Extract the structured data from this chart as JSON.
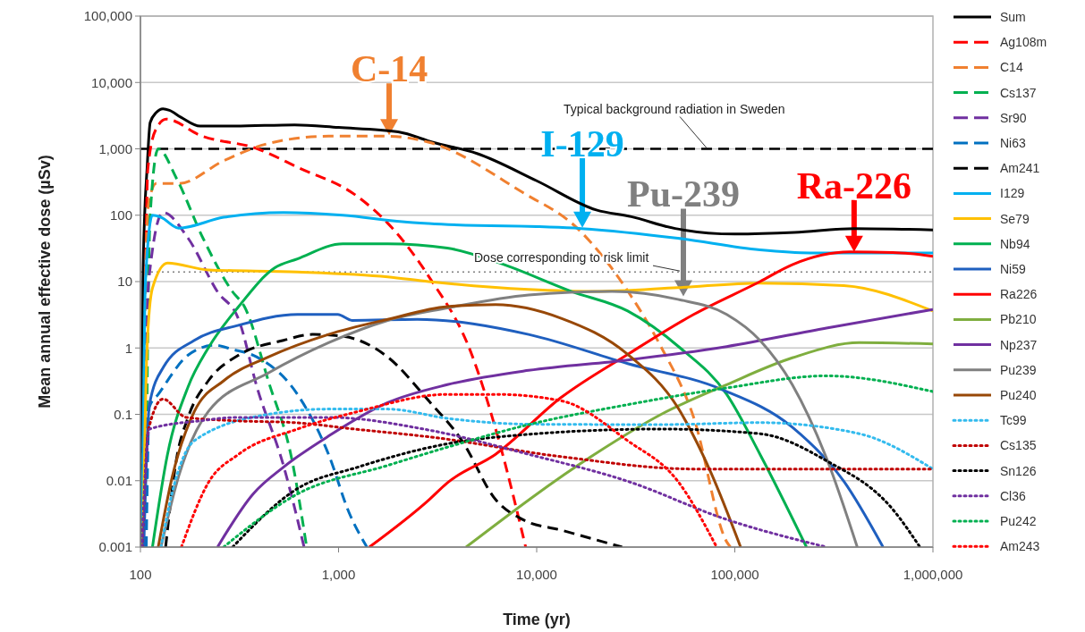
{
  "chart_data": {
    "type": "line",
    "xlabel": "Time (yr)",
    "ylabel": "Mean annual effective dose (µSv)",
    "log": "xy",
    "grid": "y",
    "legend": "right",
    "marker": "none",
    "xlim": [
      100,
      1000000
    ],
    "xticks": [
      100,
      {
        "value": 1000,
        "label": "1,000"
      },
      {
        "value": 10000,
        "label": "10,000"
      },
      {
        "value": 100000,
        "label": "100,000"
      },
      {
        "value": 1000000,
        "label": "1,000,000"
      }
    ],
    "ylim": [
      0.001,
      100000
    ],
    "yticks": [
      {
        "value": 0.001,
        "label": "0.001"
      },
      {
        "value": 0.01,
        "label": "0.01"
      },
      {
        "value": 0.1,
        "label": "0.1"
      },
      1,
      10,
      100,
      {
        "value": 1000,
        "label": "1,000"
      },
      {
        "value": 10000,
        "label": "10,000"
      },
      {
        "value": 100000,
        "label": "100,000"
      }
    ],
    "ref_lines": [
      {
        "axis": "y",
        "value": 1000,
        "label": "Typical background radiation in Sweden",
        "color": "#000000",
        "line_style": "dashed"
      },
      {
        "axis": "y",
        "value": 14,
        "label": "Dose corresponding to risk limit",
        "color": "#808080",
        "line_style": "dotted"
      }
    ],
    "annotations": [
      {
        "text": "C-14",
        "x": 1800,
        "y": 1600
      },
      {
        "text": "I-129",
        "x": 17000,
        "y": 65
      },
      {
        "text": "Pu-239",
        "x": 55000,
        "y": 6
      },
      {
        "text": "Ra-226",
        "x": 400000,
        "y": 28
      }
    ],
    "series": [
      {
        "name": "Sum",
        "color": "#000000",
        "line_style": "solid",
        "x": [
          101,
          103,
          105,
          108,
          112,
          120,
          130,
          140,
          160,
          200,
          300,
          600,
          1000,
          2000,
          3000,
          5000,
          10000,
          20000,
          30000,
          50000,
          100000,
          200000,
          400000,
          1000000
        ],
        "values": [
          0.001,
          10,
          100,
          500,
          2500,
          3500,
          4000,
          3800,
          3000,
          2200,
          2200,
          2300,
          2100,
          1800,
          1250,
          850,
          330,
          120,
          95,
          63,
          52,
          55,
          63,
          60
        ]
      },
      {
        "name": "Ag108m",
        "color": "#ff0000",
        "line_style": "dashed",
        "x": [
          103,
          109,
          120,
          135,
          200,
          390,
          620,
          1250,
          1770,
          2850,
          4700,
          6450,
          8800
        ],
        "values": [
          0.001,
          500,
          2000,
          2800,
          1600,
          1000,
          530,
          190,
          76,
          12,
          0.8,
          0.04,
          0.001
        ]
      },
      {
        "name": "C14",
        "color": "#f08030",
        "line_style": "dashed",
        "x": [
          103,
          107,
          110,
          120,
          156,
          263,
          440,
          890,
          1770,
          2870,
          8500,
          16000,
          29000,
          42000,
          62000,
          91000,
          95000
        ],
        "values": [
          0.01,
          30,
          150,
          300,
          300,
          660,
          1200,
          1550,
          1550,
          1250,
          220,
          64,
          7,
          1.1,
          0.09,
          0.0012,
          0.001
        ]
      },
      {
        "name": "Cs137",
        "color": "#00b050",
        "line_style": "dashed",
        "x": [
          106,
          112,
          123,
          152,
          207,
          292,
          335,
          442,
          585,
          690
        ],
        "values": [
          0.001,
          100,
          1000,
          360,
          45,
          7,
          4.2,
          0.32,
          0.019,
          0.001
        ]
      },
      {
        "name": "Sr90",
        "color": "#7030a0",
        "line_style": "dashed",
        "x": [
          103,
          110,
          130,
          174,
          245,
          313,
          387,
          527,
          670
        ],
        "values": [
          0.001,
          10,
          110,
          45,
          7,
          2.7,
          0.26,
          0.017,
          0.001
        ]
      },
      {
        "name": "Ni63",
        "color": "#0070c0",
        "line_style": "dashed",
        "x": [
          107,
          111,
          123,
          174,
          237,
          292,
          387,
          620,
          890,
          1130,
          1390
        ],
        "values": [
          0.001,
          0.13,
          0.2,
          0.78,
          1.1,
          0.95,
          0.73,
          0.2,
          0.025,
          0.0033,
          0.001
        ]
      },
      {
        "name": "Am241",
        "color": "#000000",
        "line_style": "dashed",
        "x": [
          134,
          152,
          174,
          220,
          313,
          527,
          740,
          1050,
          1770,
          2850,
          4200,
          6200,
          8500,
          13300,
          27000
        ],
        "values": [
          0.001,
          0.021,
          0.09,
          0.32,
          0.78,
          1.3,
          1.6,
          1.5,
          0.73,
          0.16,
          0.04,
          0.0052,
          0.0026,
          0.0018,
          0.001
        ]
      },
      {
        "name": "I129",
        "color": "#00b0f0",
        "line_style": "solid",
        "x": [
          102,
          106,
          115,
          127,
          156,
          263,
          527,
          1050,
          2100,
          2850,
          16800,
          51600,
          134000,
          240000,
          1000000
        ],
        "values": [
          0.001,
          10,
          100,
          93,
          64,
          93,
          110,
          100,
          80,
          75,
          63,
          45,
          30,
          27,
          27
        ]
      },
      {
        "name": "Se79",
        "color": "#ffc000",
        "line_style": "solid",
        "x": [
          103,
          108,
          115,
          137,
          220,
          620,
          1770,
          2850,
          9100,
          19600,
          51600,
          134000,
          355000,
          1000000
        ],
        "values": [
          0.001,
          1,
          8,
          19,
          15,
          14,
          11.8,
          10,
          7.6,
          7.1,
          8.1,
          9.5,
          8.7,
          3.6
        ]
      },
      {
        "name": "Nb94",
        "color": "#00b050",
        "line_style": "solid",
        "x": [
          115,
          137,
          174,
          220,
          313,
          475,
          620,
          1050,
          1770,
          3540,
          6200,
          15000,
          28800,
          53000,
          91000,
          134000,
          230000
        ],
        "values": [
          0.001,
          0.025,
          0.26,
          1,
          4.2,
          16,
          22,
          37,
          37,
          32,
          20,
          7.1,
          3.6,
          1,
          0.2,
          0.025,
          0.001
        ]
      },
      {
        "name": "Ni59",
        "color": "#1f5fbf",
        "line_style": "solid",
        "x": [
          104,
          111,
          131,
          187,
          313,
          620,
          990,
          1170,
          2500,
          9100,
          28800,
          85000,
          195000,
          355000,
          560000
        ],
        "values": [
          0.001,
          0.14,
          0.52,
          1.3,
          2.2,
          3.2,
          3.2,
          2.6,
          2.7,
          1.6,
          0.58,
          0.24,
          0.064,
          0.0098,
          0.001
        ]
      },
      {
        "name": "Ra226",
        "color": "#ff0000",
        "line_style": "solid",
        "x": [
          1430,
          2870,
          3540,
          6200,
          13300,
          28800,
          62000,
          134000,
          195000,
          380000,
          627000,
          1000000
        ],
        "values": [
          0.001,
          0.0052,
          0.0093,
          0.025,
          0.18,
          0.8,
          3.2,
          10,
          18,
          28,
          27.5,
          24
        ]
      },
      {
        "name": "Pb210",
        "color": "#7fae3f",
        "line_style": "solid",
        "x": [
          4400,
          19600,
          42500,
          91000,
          195000,
          425000,
          1000000
        ],
        "values": [
          0.001,
          0.025,
          0.1,
          0.28,
          0.71,
          1.2,
          1.15
        ]
      },
      {
        "name": "Np237",
        "color": "#7030a0",
        "line_style": "solid",
        "x": [
          245,
          370,
          527,
          890,
          1770,
          3540,
          9100,
          28800,
          91000,
          290000,
          1000000
        ],
        "values": [
          0.001,
          0.0063,
          0.016,
          0.047,
          0.15,
          0.28,
          0.46,
          0.66,
          1.05,
          2,
          3.8
        ]
      },
      {
        "name": "Pu239",
        "color": "#808080",
        "line_style": "solid",
        "x": [
          127,
          156,
          220,
          442,
          890,
          1770,
          3540,
          9100,
          24000,
          51600,
          91000,
          134000,
          195000,
          290000,
          415000
        ],
        "values": [
          0.001,
          0.0117,
          0.11,
          0.42,
          1.2,
          2.6,
          4,
          6.3,
          7.1,
          5.4,
          3.2,
          1.3,
          0.28,
          0.022,
          0.001
        ]
      },
      {
        "name": "Pu240",
        "color": "#984807",
        "line_style": "solid",
        "x": [
          123,
          145,
          187,
          263,
          442,
          890,
          1770,
          3540,
          6200,
          13300,
          28800,
          51600,
          76000,
          107000
        ],
        "values": [
          0.001,
          0.0117,
          0.11,
          0.32,
          0.73,
          1.6,
          2.7,
          4.2,
          4.5,
          2.8,
          0.8,
          0.126,
          0.013,
          0.001
        ]
      },
      {
        "name": "Tc99",
        "color": "#33bbee",
        "line_style": "dotted",
        "x": [
          127,
          145,
          187,
          442,
          890,
          1770,
          3540,
          9100,
          42500,
          134000,
          425000,
          1000000
        ],
        "values": [
          0.001,
          0.0068,
          0.04,
          0.1,
          0.12,
          0.12,
          0.087,
          0.071,
          0.07,
          0.075,
          0.051,
          0.015
        ]
      },
      {
        "name": "Cs135",
        "color": "#c00000",
        "line_style": "dotted",
        "x": [
          102,
          110,
          130,
          170,
          300,
          600,
          1200,
          3000,
          13300,
          62000,
          1000000
        ],
        "values": [
          0.001,
          0.06,
          0.17,
          0.09,
          0.08,
          0.075,
          0.06,
          0.045,
          0.023,
          0.015,
          0.015
        ]
      },
      {
        "name": "Sn126",
        "color": "#000000",
        "line_style": "dotted",
        "x": [
          292,
          620,
          1250,
          3540,
          9100,
          42500,
          134000,
          290000,
          627000,
          860000
        ],
        "values": [
          0.001,
          0.0076,
          0.016,
          0.036,
          0.05,
          0.06,
          0.051,
          0.02,
          0.0037,
          0.001
        ]
      },
      {
        "name": "Cl36",
        "color": "#7030a0",
        "line_style": "dotted",
        "x": [
          102,
          111,
          200,
          313,
          890,
          2850,
          9100,
          28800,
          91000,
          290000
        ],
        "values": [
          0.001,
          0.06,
          0.08,
          0.09,
          0.09,
          0.058,
          0.025,
          0.0098,
          0.0026,
          0.001
        ]
      },
      {
        "name": "Pu242",
        "color": "#00b050",
        "line_style": "dotted",
        "x": [
          263,
          620,
          1770,
          3540,
          9100,
          28800,
          91000,
          290000,
          1000000
        ],
        "values": [
          0.001,
          0.0063,
          0.017,
          0.032,
          0.07,
          0.14,
          0.25,
          0.38,
          0.22
        ]
      },
      {
        "name": "Am243",
        "color": "#ff0000",
        "line_style": "dotted",
        "x": [
          161,
          220,
          313,
          620,
          1250,
          3540,
          6200,
          13300,
          28800,
          51600,
          81000
        ],
        "values": [
          0.001,
          0.0093,
          0.025,
          0.06,
          0.11,
          0.2,
          0.2,
          0.16,
          0.04,
          0.0098,
          0.001
        ]
      }
    ]
  }
}
